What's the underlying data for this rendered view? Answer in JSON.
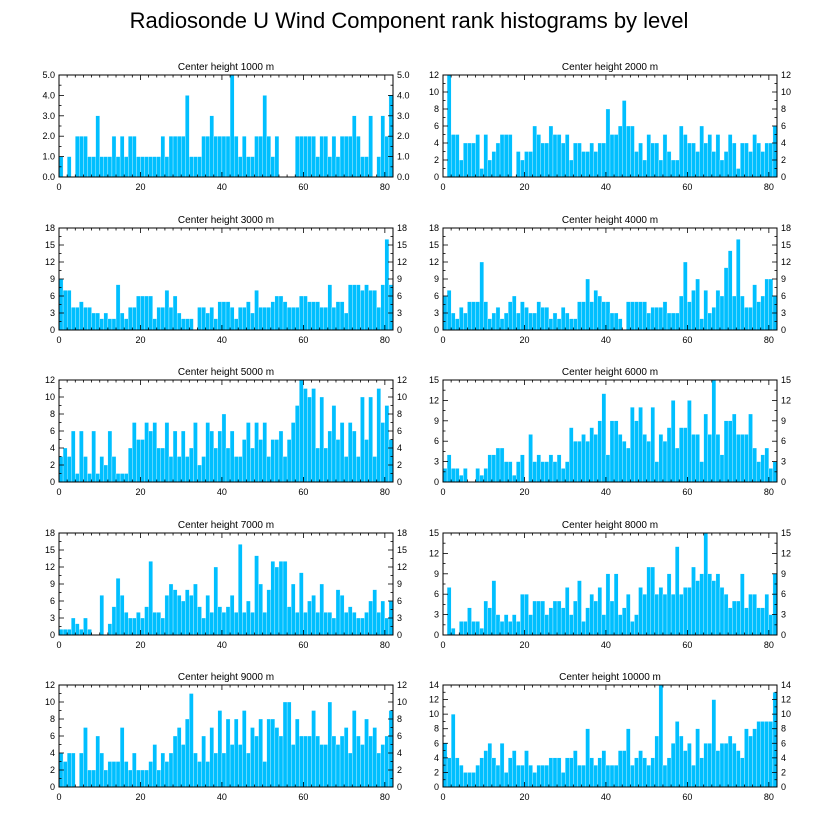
{
  "title": "Radiosonde U Wind Component rank histograms by level",
  "colors": {
    "bar": "#00bfff",
    "axis": "#000000",
    "background": "#ffffff"
  },
  "chart_data": [
    {
      "type": "bar",
      "title": "Center height 1000 m",
      "xlim": [
        0,
        82
      ],
      "xticks": [
        0,
        20,
        40,
        60,
        80
      ],
      "ylim": [
        0,
        5
      ],
      "yticks": [
        0,
        1,
        2,
        3,
        4,
        5
      ],
      "ytick_labels": [
        "0.0",
        "1.0",
        "2.0",
        "3.0",
        "4.0",
        "5.0"
      ],
      "values": [
        1,
        0,
        1,
        0,
        2,
        2,
        2,
        1,
        1,
        3,
        1,
        1,
        1,
        2,
        1,
        2,
        1,
        2,
        2,
        1,
        1,
        1,
        1,
        1,
        1,
        2,
        1,
        2,
        2,
        2,
        2,
        4,
        1,
        1,
        1,
        2,
        2,
        3,
        2,
        2,
        2,
        2,
        5,
        2,
        1,
        2,
        1,
        1,
        2,
        2,
        4,
        2,
        1,
        2,
        0,
        0,
        0,
        0,
        2,
        2,
        2,
        2,
        2,
        1,
        2,
        2,
        1,
        2,
        1,
        2,
        2,
        2,
        3,
        2,
        1,
        1,
        3,
        0,
        1,
        3,
        2,
        4
      ]
    },
    {
      "type": "bar",
      "title": "Center height 2000 m",
      "xlim": [
        0,
        82
      ],
      "xticks": [
        0,
        20,
        40,
        60,
        80
      ],
      "ylim": [
        0,
        12
      ],
      "yticks": [
        0,
        2,
        4,
        6,
        8,
        10,
        12
      ],
      "ytick_labels": [
        "0",
        "2",
        "4",
        "6",
        "8",
        "10",
        "12"
      ],
      "values": [
        0,
        12,
        5,
        5,
        2,
        4,
        4,
        4,
        5,
        1,
        5,
        2,
        3,
        4,
        5,
        5,
        5,
        0,
        3,
        2,
        3,
        3,
        6,
        5,
        4,
        4,
        6,
        5,
        5,
        4,
        5,
        2,
        4,
        4,
        3,
        3,
        4,
        3,
        4,
        4,
        8,
        5,
        5,
        6,
        9,
        6,
        6,
        3,
        4,
        2,
        5,
        4,
        4,
        2,
        5,
        3,
        2,
        2,
        6,
        5,
        4,
        4,
        3,
        6,
        4,
        5,
        3,
        5,
        2,
        3,
        5,
        4,
        1,
        4,
        4,
        3,
        5,
        4,
        3,
        4,
        4,
        6
      ]
    },
    {
      "type": "bar",
      "title": "Center height 3000 m",
      "xlim": [
        0,
        82
      ],
      "xticks": [
        0,
        20,
        40,
        60,
        80
      ],
      "ylim": [
        0,
        18
      ],
      "yticks": [
        0,
        3,
        6,
        9,
        12,
        15,
        18
      ],
      "ytick_labels": [
        "0",
        "3",
        "6",
        "9",
        "12",
        "15",
        "18"
      ],
      "values": [
        9,
        7,
        7,
        4,
        4,
        5,
        4,
        4,
        3,
        3,
        2,
        3,
        2,
        2,
        8,
        3,
        2,
        4,
        4,
        6,
        6,
        6,
        6,
        2,
        4,
        4,
        7,
        4,
        6,
        3,
        2,
        2,
        2,
        0,
        4,
        4,
        3,
        4,
        2,
        5,
        5,
        5,
        4,
        2,
        4,
        4,
        5,
        3,
        7,
        4,
        4,
        4,
        5,
        6,
        6,
        5,
        4,
        4,
        4,
        6,
        6,
        5,
        5,
        5,
        4,
        4,
        8,
        4,
        5,
        5,
        3,
        8,
        8,
        8,
        7,
        8,
        7,
        7,
        4,
        8,
        16,
        8
      ]
    },
    {
      "type": "bar",
      "title": "Center height 4000 m",
      "xlim": [
        0,
        82
      ],
      "xticks": [
        0,
        20,
        40,
        60,
        80
      ],
      "ylim": [
        0,
        18
      ],
      "yticks": [
        0,
        3,
        6,
        9,
        12,
        15,
        18
      ],
      "ytick_labels": [
        "0",
        "3",
        "6",
        "9",
        "12",
        "15",
        "18"
      ],
      "values": [
        6,
        7,
        3,
        2,
        4,
        3,
        5,
        5,
        5,
        12,
        5,
        2,
        3,
        4,
        2,
        3,
        5,
        6,
        3,
        5,
        4,
        3,
        3,
        5,
        4,
        4,
        2,
        3,
        2,
        4,
        3,
        2,
        2,
        5,
        5,
        9,
        5,
        7,
        6,
        5,
        5,
        3,
        3,
        2,
        0,
        5,
        5,
        5,
        5,
        5,
        3,
        4,
        4,
        4,
        5,
        3,
        3,
        3,
        6,
        12,
        5,
        7,
        9,
        2,
        7,
        3,
        4,
        7,
        6,
        11,
        14,
        6,
        16,
        6,
        4,
        4,
        8,
        5,
        6,
        9,
        9,
        6
      ]
    },
    {
      "type": "bar",
      "title": "Center height 5000 m",
      "xlim": [
        0,
        82
      ],
      "xticks": [
        0,
        20,
        40,
        60,
        80
      ],
      "ylim": [
        0,
        12
      ],
      "yticks": [
        0,
        2,
        4,
        6,
        8,
        10,
        12
      ],
      "ytick_labels": [
        "0",
        "2",
        "4",
        "6",
        "8",
        "10",
        "12"
      ],
      "values": [
        3,
        4,
        3,
        6,
        1,
        6,
        3,
        1,
        6,
        1,
        3,
        2,
        6,
        3,
        1,
        1,
        1,
        4,
        7,
        5,
        5,
        7,
        6,
        7,
        4,
        4,
        7,
        3,
        6,
        3,
        6,
        3,
        4,
        7,
        2,
        3,
        7,
        6,
        4,
        6,
        8,
        4,
        6,
        3,
        3,
        5,
        7,
        4,
        7,
        5,
        7,
        3,
        5,
        5,
        6,
        3,
        5,
        7,
        9,
        12,
        11,
        10,
        11,
        4,
        10,
        4,
        6,
        9,
        5,
        7,
        3,
        7,
        6,
        3,
        10,
        5,
        10,
        3,
        11,
        7,
        9,
        5
      ]
    },
    {
      "type": "bar",
      "title": "Center height 6000 m",
      "xlim": [
        0,
        82
      ],
      "xticks": [
        0,
        20,
        40,
        60,
        80
      ],
      "ylim": [
        0,
        15
      ],
      "yticks": [
        0,
        3,
        6,
        9,
        12,
        15
      ],
      "ytick_labels": [
        "0",
        "3",
        "6",
        "9",
        "12",
        "15"
      ],
      "values": [
        2,
        4,
        2,
        2,
        1,
        2,
        0,
        0,
        2,
        1,
        2,
        4,
        4,
        5,
        5,
        3,
        3,
        1,
        3,
        4,
        0,
        7,
        3,
        4,
        3,
        3,
        4,
        3,
        4,
        2,
        3,
        8,
        6,
        6,
        7,
        6,
        8,
        7,
        9,
        13,
        4,
        9,
        9,
        7,
        6,
        5,
        11,
        9,
        11,
        7,
        6,
        11,
        3,
        7,
        6,
        8,
        12,
        5,
        8,
        8,
        12,
        7,
        7,
        3,
        10,
        7,
        15,
        7,
        4,
        9,
        9,
        10,
        7,
        7,
        7,
        10,
        5,
        3,
        4,
        5,
        2,
        3
      ]
    },
    {
      "type": "bar",
      "title": "Center height 7000 m",
      "xlim": [
        0,
        82
      ],
      "xticks": [
        0,
        20,
        40,
        60,
        80
      ],
      "ylim": [
        0,
        18
      ],
      "yticks": [
        0,
        3,
        6,
        9,
        12,
        15,
        18
      ],
      "ytick_labels": [
        "0",
        "3",
        "6",
        "9",
        "12",
        "15",
        "18"
      ],
      "values": [
        1,
        1,
        1,
        3,
        2,
        1,
        3,
        1,
        0,
        0,
        7,
        0,
        2,
        5,
        10,
        7,
        4,
        3,
        3,
        4,
        3,
        5,
        13,
        4,
        4,
        3,
        7,
        9,
        8,
        7,
        6,
        8,
        7,
        9,
        5,
        3,
        7,
        4,
        12,
        5,
        4,
        5,
        7,
        4,
        16,
        4,
        6,
        4,
        14,
        9,
        4,
        8,
        13,
        12,
        13,
        13,
        5,
        9,
        4,
        11,
        4,
        6,
        7,
        4,
        9,
        4,
        4,
        3,
        8,
        7,
        4,
        5,
        4,
        3,
        3,
        4,
        6,
        8,
        4,
        6,
        3,
        6
      ]
    },
    {
      "type": "bar",
      "title": "Center height 8000 m",
      "xlim": [
        0,
        82
      ],
      "xticks": [
        0,
        20,
        40,
        60,
        80
      ],
      "ylim": [
        0,
        15
      ],
      "yticks": [
        0,
        3,
        6,
        9,
        12,
        15
      ],
      "ytick_labels": [
        "0",
        "3",
        "6",
        "9",
        "12",
        "15"
      ],
      "values": [
        0,
        7,
        1,
        0,
        2,
        2,
        4,
        2,
        2,
        1,
        5,
        4,
        8,
        3,
        2,
        3,
        2,
        3,
        2,
        6,
        6,
        3,
        5,
        5,
        5,
        3,
        4,
        5,
        5,
        4,
        7,
        3,
        5,
        8,
        2,
        4,
        6,
        5,
        7,
        3,
        9,
        5,
        9,
        3,
        4,
        6,
        2,
        3,
        7,
        6,
        10,
        10,
        6,
        7,
        6,
        9,
        6,
        13,
        6,
        7,
        7,
        10,
        8,
        9,
        15,
        9,
        8,
        9,
        7,
        6,
        4,
        5,
        5,
        9,
        4,
        6,
        6,
        4,
        4,
        6,
        3,
        9
      ]
    },
    {
      "type": "bar",
      "title": "Center height 9000 m",
      "xlim": [
        0,
        82
      ],
      "xticks": [
        0,
        20,
        40,
        60,
        80
      ],
      "ylim": [
        0,
        12
      ],
      "yticks": [
        0,
        2,
        4,
        6,
        8,
        10,
        12
      ],
      "ytick_labels": [
        "0",
        "2",
        "4",
        "6",
        "8",
        "10",
        "12"
      ],
      "values": [
        4,
        3,
        4,
        4,
        0,
        4,
        7,
        2,
        2,
        6,
        4,
        2,
        3,
        3,
        3,
        7,
        3,
        2,
        4,
        2,
        2,
        2,
        3,
        5,
        2,
        4,
        3,
        4,
        6,
        7,
        5,
        8,
        11,
        4,
        3,
        6,
        3,
        7,
        4,
        9,
        4,
        8,
        5,
        8,
        5,
        9,
        4,
        7,
        6,
        8,
        3,
        8,
        8,
        7,
        6,
        10,
        10,
        5,
        8,
        6,
        6,
        6,
        9,
        6,
        5,
        5,
        10,
        6,
        5,
        6,
        7,
        4,
        9,
        6,
        5,
        8,
        6,
        7,
        4,
        5,
        6,
        9
      ]
    },
    {
      "type": "bar",
      "title": "Center height 10000 m",
      "xlim": [
        0,
        82
      ],
      "xticks": [
        0,
        20,
        40,
        60,
        80
      ],
      "ylim": [
        0,
        14
      ],
      "yticks": [
        0,
        2,
        4,
        6,
        8,
        10,
        12,
        14
      ],
      "ytick_labels": [
        "0",
        "2",
        "4",
        "6",
        "8",
        "10",
        "12",
        "14"
      ],
      "values": [
        6,
        4,
        10,
        4,
        3,
        2,
        2,
        2,
        3,
        4,
        5,
        6,
        4,
        3,
        6,
        2,
        4,
        5,
        3,
        3,
        5,
        3,
        2,
        3,
        3,
        3,
        4,
        4,
        4,
        2,
        4,
        4,
        5,
        3,
        3,
        8,
        4,
        3,
        4,
        5,
        3,
        3,
        3,
        5,
        5,
        8,
        3,
        4,
        5,
        4,
        3,
        4,
        7,
        14,
        3,
        4,
        6,
        9,
        7,
        5,
        6,
        3,
        8,
        4,
        6,
        6,
        12,
        5,
        6,
        6,
        7,
        6,
        5,
        4,
        8,
        7,
        8,
        9,
        9,
        9,
        9,
        13
      ]
    }
  ]
}
